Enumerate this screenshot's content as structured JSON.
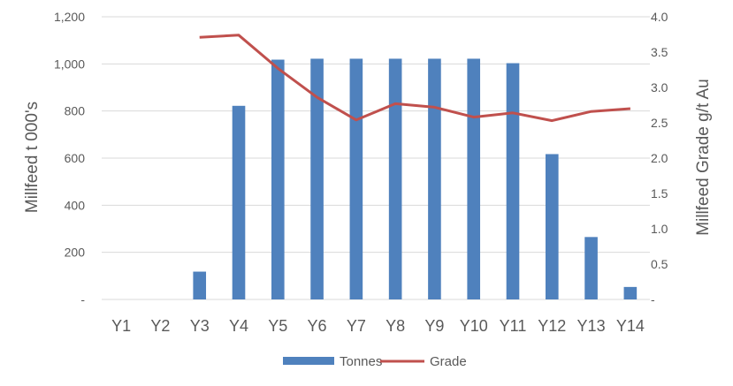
{
  "colors": {
    "tonnes": "#4F81BD",
    "grade": "#C0504D",
    "grid": "#D9D9D9",
    "text": "#595959"
  },
  "chart_data": {
    "type": "bar",
    "categories": [
      "Y1",
      "Y2",
      "Y3",
      "Y4",
      "Y5",
      "Y6",
      "Y7",
      "Y8",
      "Y9",
      "Y10",
      "Y11",
      "Y12",
      "Y13",
      "Y14"
    ],
    "series": [
      {
        "name": "Tonnes",
        "type": "bar",
        "axis": "left",
        "values": [
          0,
          0,
          118,
          822,
          1018,
          1022,
          1022,
          1022,
          1022,
          1022,
          1003,
          617,
          265,
          53
        ]
      },
      {
        "name": "Grade",
        "type": "line",
        "axis": "right",
        "values": [
          null,
          null,
          3.71,
          3.74,
          3.27,
          2.86,
          2.54,
          2.77,
          2.72,
          2.58,
          2.64,
          2.53,
          2.66,
          2.7
        ]
      }
    ],
    "ylabel": "Millfeed  t 000's",
    "y2label": "Millfeed Grade  g/t Au",
    "ylim": [
      0,
      1200
    ],
    "y2lim": [
      0,
      4.0
    ],
    "yticks": [
      "-",
      "200",
      "400",
      "600",
      "800",
      "1,000",
      "1,200"
    ],
    "y2ticks": [
      "-",
      "0.5",
      "1.0",
      "1.5",
      "2.0",
      "2.5",
      "3.0",
      "3.5",
      "4.0"
    ],
    "grid": true,
    "legend_position": "bottom"
  }
}
